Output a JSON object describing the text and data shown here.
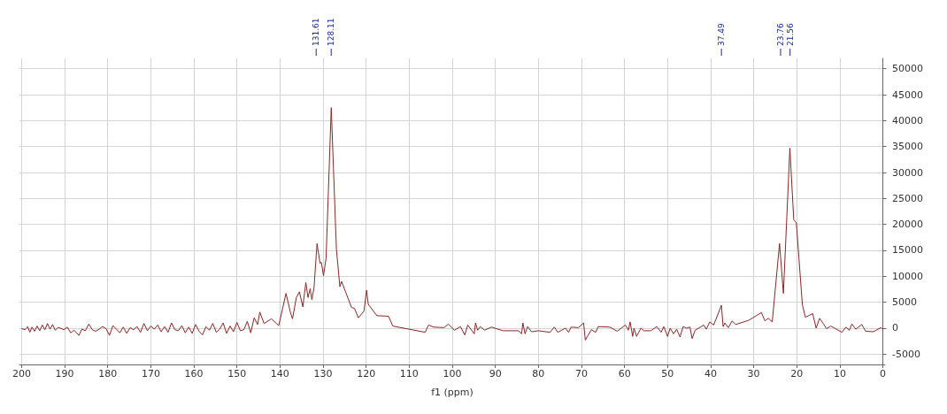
{
  "chart_data": {
    "type": "line",
    "xlabel": "f1 (ppm)",
    "xlim": [
      200.5,
      -0.5
    ],
    "xticks": [
      200,
      190,
      180,
      170,
      160,
      150,
      140,
      130,
      120,
      110,
      100,
      90,
      80,
      70,
      60,
      50,
      40,
      30,
      20,
      10,
      0
    ],
    "ylim": [
      -7000,
      52000
    ],
    "yticks": [
      -5000,
      0,
      5000,
      10000,
      15000,
      20000,
      25000,
      30000,
      35000,
      40000,
      45000,
      50000
    ],
    "grid": true,
    "marker": "none",
    "line_style": "solid",
    "annotations": [
      {
        "text": "131.61",
        "x": 131.61
      },
      {
        "text": "128.11",
        "x": 128.11
      },
      {
        "text": "37.49",
        "x": 37.49
      },
      {
        "text": "23.76",
        "x": 23.76
      },
      {
        "text": "21.56",
        "x": 21.56
      }
    ],
    "series": [
      {
        "color": "#8b2525",
        "x": [
          200,
          199.2,
          198.6,
          198.1,
          197.6,
          197.0,
          196.4,
          195.8,
          195.2,
          194.6,
          194.0,
          193.4,
          192.8,
          192.2,
          191.6,
          191.0,
          190.2,
          189.4,
          188.6,
          187.8,
          186.7,
          186.0,
          185.2,
          184.4,
          183.6,
          182.8,
          182.0,
          181.2,
          180.4,
          179.6,
          178.8,
          178.0,
          177.2,
          176.4,
          175.6,
          174.8,
          174.0,
          173.2,
          172.4,
          171.6,
          170.8,
          170.0,
          169.2,
          168.4,
          167.6,
          166.8,
          166.0,
          165.2,
          164.4,
          163.6,
          162.8,
          162.0,
          161.2,
          160.4,
          159.6,
          158.8,
          158.0,
          157.2,
          156.4,
          155.6,
          154.8,
          154.0,
          153.2,
          152.4,
          151.6,
          150.8,
          150.0,
          149.2,
          148.4,
          147.6,
          146.8,
          146.0,
          145.2,
          144.7,
          143.7,
          142.0,
          140.3,
          138.6,
          137.6,
          137.1,
          136.2,
          135.5,
          134.7,
          134.0,
          133.5,
          133.0,
          132.6,
          132.1,
          131.4,
          130.7,
          130.4,
          129.9,
          129.3,
          128.1,
          126.9,
          126.1,
          125.7,
          123.4,
          122.7,
          121.8,
          120.5,
          119.9,
          119.5,
          117.5,
          114.8,
          113.8,
          106.3,
          105.5,
          104.3,
          101.9,
          100.9,
          99.5,
          98.1,
          97.1,
          96.4,
          94.9,
          94.6,
          94.1,
          93.5,
          92.5,
          90.9,
          88.2,
          84.6,
          83.9,
          83.6,
          83.1,
          82.5,
          81.6,
          80.0,
          77.3,
          76.3,
          75.5,
          73.7,
          73.0,
          72.4,
          70.7,
          69.5,
          69.1,
          67.7,
          66.7,
          66.1,
          63.4,
          61.7,
          59.8,
          59.1,
          58.7,
          58.1,
          57.8,
          57.2,
          56.2,
          55.5,
          53.9,
          52.5,
          51.5,
          50.9,
          50.0,
          49.4,
          48.6,
          47.9,
          47.1,
          46.4,
          45.6,
          44.8,
          44.3,
          43.6,
          41.6,
          41.0,
          40.2,
          39.3,
          37.5,
          37.1,
          36.7,
          35.9,
          35.0,
          34.2,
          31.2,
          28.2,
          27.4,
          26.6,
          25.7,
          24.0,
          23.1,
          21.6,
          20.7,
          20.1,
          18.7,
          18.0,
          16.3,
          15.5,
          14.7,
          13.7,
          13.1,
          12.1,
          9.5,
          8.6,
          7.8,
          7.2,
          6.3,
          4.9,
          4.0,
          2.2,
          0.5,
          0.0
        ],
        "values": [
          -100,
          -300,
          300,
          -800,
          200,
          -600,
          400,
          -500,
          600,
          -300,
          900,
          -200,
          700,
          -400,
          100,
          0,
          -300,
          200,
          -900,
          -400,
          -1400,
          -200,
          -500,
          800,
          -300,
          -600,
          -200,
          300,
          -100,
          -1400,
          500,
          -200,
          -900,
          200,
          -1000,
          100,
          -300,
          300,
          -800,
          900,
          -500,
          400,
          -200,
          600,
          -700,
          300,
          -800,
          1000,
          -300,
          -500,
          500,
          -900,
          200,
          -1000,
          700,
          -600,
          -1300,
          300,
          -400,
          900,
          -800,
          -200,
          1000,
          -1000,
          400,
          -700,
          1100,
          -500,
          -300,
          1300,
          -900,
          2000,
          700,
          3100,
          900,
          1800,
          500,
          6700,
          3100,
          1800,
          5900,
          7000,
          4100,
          8800,
          5900,
          7600,
          5500,
          7800,
          16300,
          12500,
          12700,
          10100,
          13500,
          42500,
          15200,
          8000,
          9000,
          4000,
          3800,
          2000,
          3300,
          7300,
          4600,
          2400,
          2300,
          400,
          -800,
          600,
          200,
          100,
          800,
          -400,
          300,
          -1300,
          600,
          -1100,
          1000,
          -400,
          300,
          -400,
          200,
          -500,
          -500,
          -1100,
          1000,
          -1100,
          300,
          -700,
          -500,
          -800,
          200,
          -800,
          0,
          -800,
          200,
          100,
          1000,
          -2300,
          -300,
          -800,
          300,
          200,
          -600,
          600,
          -400,
          1200,
          -1600,
          0,
          -1600,
          0,
          -500,
          -500,
          300,
          -800,
          300,
          -1600,
          0,
          -1100,
          -200,
          -1700,
          300,
          0,
          200,
          -2000,
          -400,
          600,
          -200,
          1200,
          600,
          4400,
          300,
          1000,
          100,
          1400,
          700,
          1500,
          3000,
          1400,
          1900,
          1200,
          16300,
          6700,
          34700,
          20900,
          20300,
          4500,
          2100,
          2800,
          0,
          1900,
          700,
          -100,
          400,
          -800,
          200,
          -400,
          800,
          -200,
          700,
          -600,
          -700,
          100,
          -200
        ]
      }
    ]
  }
}
